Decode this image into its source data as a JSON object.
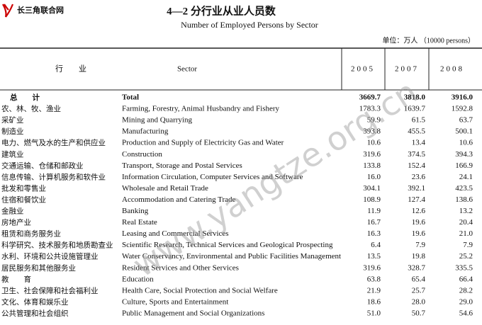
{
  "header": {
    "logo": "长三角联合网",
    "title": "4—2 分行业从业人员数",
    "subtitle": "Number of Employed Persons by Sector",
    "unit": "单位：万人 （10000 persons）"
  },
  "watermark": "www.yangtze.org.cn",
  "table": {
    "columns": [
      "行　　业",
      "Sector",
      "2005",
      "2007",
      "2008"
    ],
    "rows": [
      [
        "总　　计",
        "Total",
        "3669.7",
        "3818.0",
        "3916.0"
      ],
      [
        "农、林、牧、渔业",
        "Farming, Forestry, Animal Husbandry and Fishery",
        "1783.3",
        "1639.7",
        "1592.8"
      ],
      [
        "采矿业",
        "Mining and Quarrying",
        "59.9",
        "61.5",
        "63.7"
      ],
      [
        "制造业",
        "Manufacturing",
        "393.8",
        "455.5",
        "500.1"
      ],
      [
        "电力、燃气及水的生产和供应业",
        "Production and Supply of Electricity Gas and Water",
        "10.6",
        "13.4",
        "10.6"
      ],
      [
        "建筑业",
        "Construction",
        "319.6",
        "374.5",
        "394.3"
      ],
      [
        "交通运输、仓储和邮政业",
        "Transport, Storage and Postal Services",
        "133.8",
        "152.4",
        "166.9"
      ],
      [
        "信息传输、计算机服务和软件业",
        "Information Circulation, Computer Services and Software",
        "16.0",
        "23.6",
        "24.1"
      ],
      [
        "批发和零售业",
        "Wholesale and Retail Trade",
        "304.1",
        "392.1",
        "423.5"
      ],
      [
        "住宿和餐饮业",
        "Accommodation and Catering Trade",
        "108.9",
        "127.4",
        "138.6"
      ],
      [
        "金融业",
        "Banking",
        "11.9",
        "12.6",
        "13.2"
      ],
      [
        "房地产业",
        "Real Estate",
        "16.7",
        "19.6",
        "20.4"
      ],
      [
        "租赁和商务服务业",
        "Leasing and Commercial Services",
        "16.3",
        "19.6",
        "21.0"
      ],
      [
        "科学研究、技术服务和地质勘查业",
        "Scientific Research, Technical Services and Geological Prospecting",
        "6.4",
        "7.9",
        "7.9"
      ],
      [
        "水利、环境和公共设施管理业",
        "Water Conservancy, Environmental and Public Facilities Management",
        "13.5",
        "19.8",
        "25.2"
      ],
      [
        "居民服务和其他服务业",
        "Resident Services and Other Services",
        "319.6",
        "328.7",
        "335.5"
      ],
      [
        "教　　育",
        "Education",
        "63.8",
        "65.4",
        "66.4"
      ],
      [
        "卫生、社会保障和社会福利业",
        "Health Care, Social Protection and Social Welfare",
        "21.9",
        "25.7",
        "28.2"
      ],
      [
        "文化、体育和娱乐业",
        "Culture, Sports and Entertainment",
        "18.6",
        "28.0",
        "29.0"
      ],
      [
        "公共管理和社会组织",
        "Public Management and Social Organizations",
        "51.0",
        "50.7",
        "54.6"
      ]
    ]
  }
}
